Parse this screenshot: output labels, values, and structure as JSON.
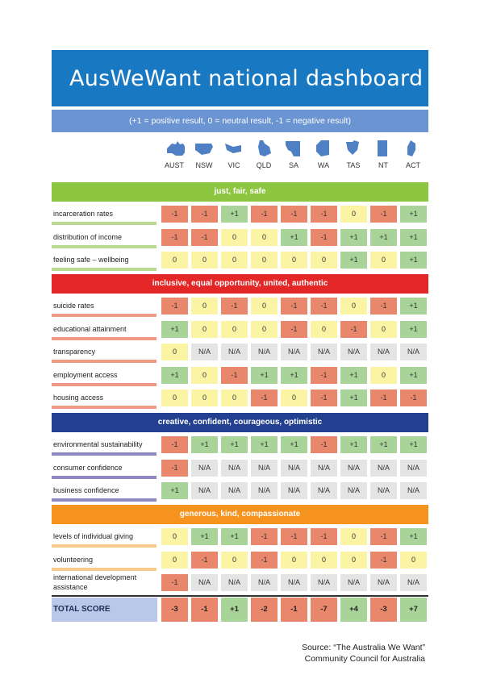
{
  "title": "AusWeWant national dashboard",
  "legend": "(+1 = positive result, 0 = neutral result, -1 = negative result)",
  "states": [
    {
      "code": "AUST",
      "icon": "australia-map-icon"
    },
    {
      "code": "NSW",
      "icon": "nsw-map-icon"
    },
    {
      "code": "VIC",
      "icon": "vic-map-icon"
    },
    {
      "code": "QLD",
      "icon": "qld-map-icon"
    },
    {
      "code": "SA",
      "icon": "sa-map-icon"
    },
    {
      "code": "WA",
      "icon": "wa-map-icon"
    },
    {
      "code": "TAS",
      "icon": "tas-map-icon"
    },
    {
      "code": "NT",
      "icon": "nt-map-icon"
    },
    {
      "code": "ACT",
      "icon": "act-map-icon"
    }
  ],
  "sections": [
    {
      "title": "just, fair, safe",
      "color": "#8dc640",
      "underline_color": "#b8d98f",
      "rows": [
        {
          "label": "incarceration rates",
          "values": [
            "-1",
            "-1",
            "+1",
            "-1",
            "-1",
            "-1",
            "0",
            "-1",
            "+1"
          ]
        },
        {
          "label": "distribution of income",
          "values": [
            "-1",
            "-1",
            "0",
            "0",
            "+1",
            "-1",
            "+1",
            "+1",
            "+1"
          ]
        },
        {
          "label": "feeling safe – wellbeing",
          "values": [
            "0",
            "0",
            "0",
            "0",
            "0",
            "0",
            "+1",
            "0",
            "+1"
          ]
        }
      ]
    },
    {
      "title": "inclusive, equal opportunity, united, authentic",
      "color": "#e32726",
      "underline_color": "#ef9a84",
      "rows": [
        {
          "label": "suicide rates",
          "values": [
            "-1",
            "0",
            "-1",
            "0",
            "-1",
            "-1",
            "0",
            "-1",
            "+1"
          ]
        },
        {
          "label": "educational attainment",
          "values": [
            "+1",
            "0",
            "0",
            "0",
            "-1",
            "0",
            "-1",
            "0",
            "+1"
          ]
        },
        {
          "label": "transparency",
          "values": [
            "0",
            "N/A",
            "N/A",
            "N/A",
            "N/A",
            "N/A",
            "N/A",
            "N/A",
            "N/A"
          ]
        },
        {
          "label": "employment access",
          "values": [
            "+1",
            "0",
            "-1",
            "+1",
            "+1",
            "-1",
            "+1",
            "0",
            "+1"
          ]
        },
        {
          "label": "housing access",
          "values": [
            "0",
            "0",
            "0",
            "-1",
            "0",
            "-1",
            "+1",
            "-1",
            "-1"
          ]
        }
      ]
    },
    {
      "title": "creative, confident, courageous, optimistic",
      "color": "#233f8f",
      "underline_color": "#8d88bf",
      "rows": [
        {
          "label": "environmental sustainability",
          "values": [
            "-1",
            "+1",
            "+1",
            "+1",
            "+1",
            "-1",
            "+1",
            "+1",
            "+1"
          ]
        },
        {
          "label": "consumer confidence",
          "values": [
            "-1",
            "N/A",
            "N/A",
            "N/A",
            "N/A",
            "N/A",
            "N/A",
            "N/A",
            "N/A"
          ]
        },
        {
          "label": "business confidence",
          "values": [
            "+1",
            "N/A",
            "N/A",
            "N/A",
            "N/A",
            "N/A",
            "N/A",
            "N/A",
            "N/A"
          ]
        }
      ]
    },
    {
      "title": "generous, kind, compassionate",
      "color": "#f6921e",
      "underline_color": "#f7c98e",
      "rows": [
        {
          "label": "levels of individual giving",
          "values": [
            "0",
            "+1",
            "+1",
            "-1",
            "-1",
            "-1",
            "0",
            "-1",
            "+1"
          ]
        },
        {
          "label": "volunteering",
          "values": [
            "0",
            "-1",
            "0",
            "-1",
            "0",
            "0",
            "0",
            "-1",
            "0"
          ]
        },
        {
          "label": "international development assistance",
          "values": [
            "-1",
            "N/A",
            "N/A",
            "N/A",
            "N/A",
            "N/A",
            "N/A",
            "N/A",
            "N/A"
          ]
        }
      ]
    }
  ],
  "total": {
    "label": "TOTAL SCORE",
    "values": [
      "-3",
      "-1",
      "+1",
      "-2",
      "-1",
      "-7",
      "+4",
      "-3",
      "+7"
    ]
  },
  "source": {
    "line1": "Source: “The Australia We Want”",
    "line2": "Community Council for Australia"
  },
  "colors": {
    "title_bg": "#1878c2",
    "legend_bg": "#6a94d2",
    "positive": "#a8d499",
    "neutral": "#fbf4a4",
    "negative": "#e8876b",
    "na": "#e4e4e4",
    "total_label_bg": "#b9c8e8"
  }
}
